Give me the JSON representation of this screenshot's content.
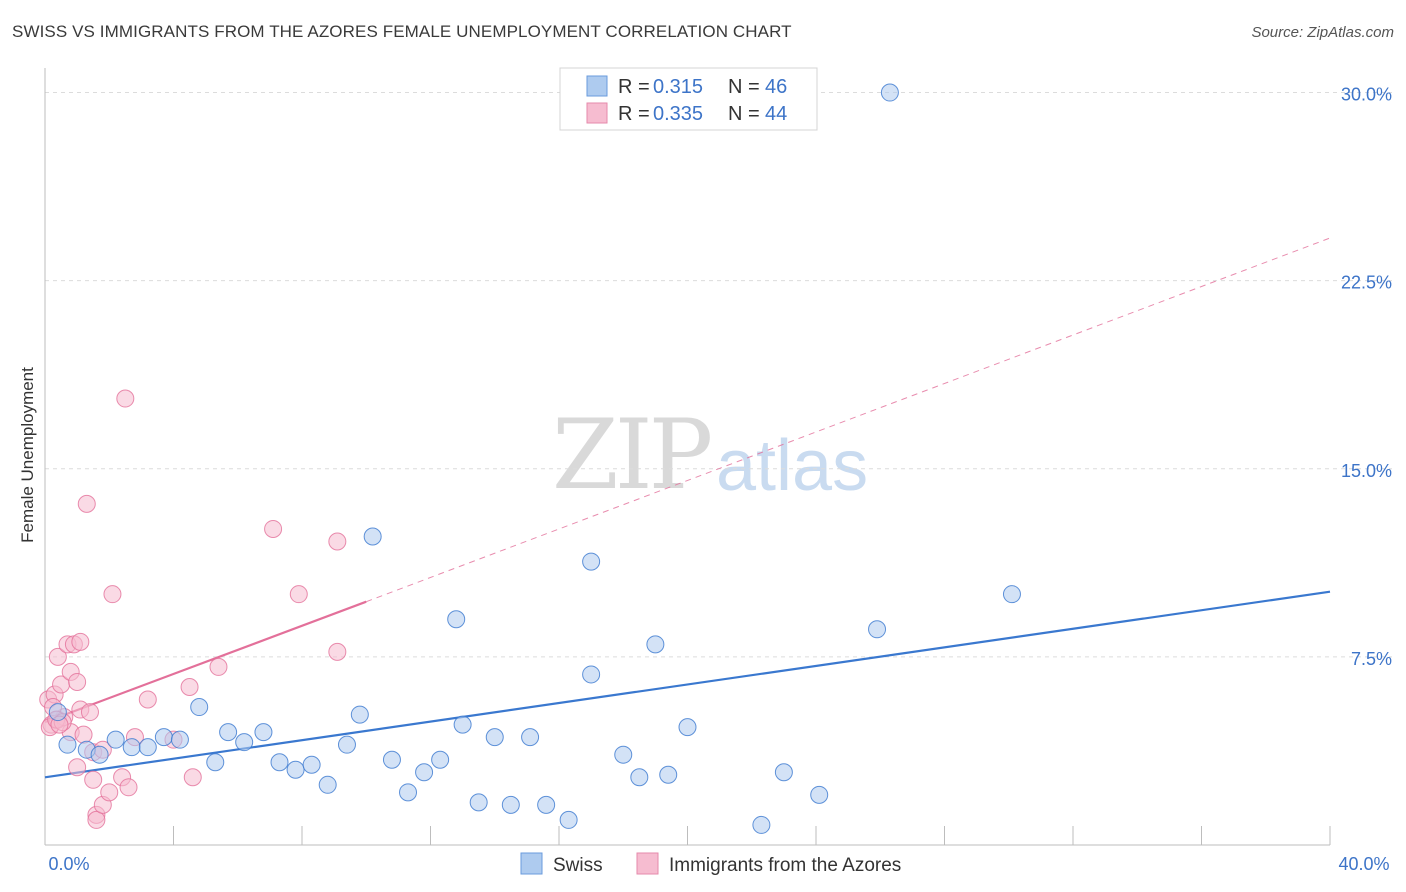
{
  "title": "SWISS VS IMMIGRANTS FROM THE AZORES FEMALE UNEMPLOYMENT CORRELATION CHART",
  "source": "Source: ZipAtlas.com",
  "watermark": {
    "zip": "ZIP",
    "atlas": "atlas"
  },
  "legend": {
    "rows": [
      {
        "r_label": "R =",
        "r_value": "0.315",
        "n_label": "N =",
        "n_value": "46"
      },
      {
        "r_label": "R =",
        "r_value": "0.335",
        "n_label": "N =",
        "n_value": "44"
      }
    ]
  },
  "chart_data": {
    "type": "scatter",
    "title": "SWISS VS IMMIGRANTS FROM THE AZORES FEMALE UNEMPLOYMENT CORRELATION CHART",
    "xlabel": "",
    "ylabel": "Female Unemployment",
    "xlim": [
      0,
      40
    ],
    "ylim": [
      0,
      30.5
    ],
    "x_tick_labels": {
      "left": "0.0%",
      "right": "40.0%"
    },
    "y_ticks": [
      {
        "value": 7.5,
        "label": "7.5%"
      },
      {
        "value": 15,
        "label": "15.0%"
      },
      {
        "value": 22.5,
        "label": "22.5%"
      },
      {
        "value": 30,
        "label": "30.0%"
      }
    ],
    "colors": {
      "swiss": "#3a78cf",
      "swiss_fill": "#aecbef",
      "azores": "#e3709a",
      "azores_fill": "#f6bcd0"
    },
    "series": [
      {
        "name": "Swiss",
        "trend": {
          "x0": 0,
          "y0": 2.7,
          "x1": 40,
          "y1": 10.1,
          "dashed_from": null
        },
        "points": [
          [
            0.4,
            5.3
          ],
          [
            0.7,
            4.0
          ],
          [
            1.3,
            3.8
          ],
          [
            1.7,
            3.6
          ],
          [
            2.2,
            4.2
          ],
          [
            2.7,
            3.9
          ],
          [
            3.2,
            3.9
          ],
          [
            3.7,
            4.3
          ],
          [
            4.2,
            4.2
          ],
          [
            4.8,
            5.5
          ],
          [
            5.3,
            3.3
          ],
          [
            5.7,
            4.5
          ],
          [
            6.2,
            4.1
          ],
          [
            6.8,
            4.5
          ],
          [
            7.3,
            3.3
          ],
          [
            7.8,
            3.0
          ],
          [
            8.3,
            3.2
          ],
          [
            8.8,
            2.4
          ],
          [
            9.4,
            4.0
          ],
          [
            9.8,
            5.2
          ],
          [
            10.2,
            12.3
          ],
          [
            10.8,
            3.4
          ],
          [
            11.3,
            2.1
          ],
          [
            11.8,
            2.9
          ],
          [
            12.3,
            3.4
          ],
          [
            12.8,
            9.0
          ],
          [
            13.0,
            4.8
          ],
          [
            13.5,
            1.7
          ],
          [
            14.0,
            4.3
          ],
          [
            14.5,
            1.6
          ],
          [
            15.1,
            4.3
          ],
          [
            15.6,
            1.6
          ],
          [
            16.3,
            1.0
          ],
          [
            17.0,
            11.3
          ],
          [
            17.0,
            6.8
          ],
          [
            18.0,
            3.6
          ],
          [
            18.5,
            2.7
          ],
          [
            19.0,
            8.0
          ],
          [
            19.4,
            2.8
          ],
          [
            20.0,
            4.7
          ],
          [
            22.3,
            0.8
          ],
          [
            23.0,
            2.9
          ],
          [
            24.1,
            2.0
          ],
          [
            25.9,
            8.6
          ],
          [
            30.1,
            10.0
          ],
          [
            26.3,
            30.0
          ]
        ]
      },
      {
        "name": "Immigrants from the Azores",
        "trend": {
          "x0": 0,
          "y0": 4.9,
          "x1": 10,
          "y1": 9.7,
          "dashed_to_x": 40,
          "dashed_to_y": 24.2
        },
        "points": [
          [
            0.1,
            5.8
          ],
          [
            0.2,
            4.8
          ],
          [
            0.3,
            6.0
          ],
          [
            0.4,
            5.0
          ],
          [
            0.4,
            7.5
          ],
          [
            0.5,
            6.4
          ],
          [
            0.6,
            5.1
          ],
          [
            0.7,
            8.0
          ],
          [
            0.8,
            6.9
          ],
          [
            0.8,
            4.5
          ],
          [
            0.9,
            8.0
          ],
          [
            1.0,
            3.1
          ],
          [
            1.0,
            6.5
          ],
          [
            1.1,
            5.4
          ],
          [
            1.1,
            8.1
          ],
          [
            1.2,
            4.4
          ],
          [
            1.3,
            13.6
          ],
          [
            1.4,
            5.3
          ],
          [
            1.5,
            3.7
          ],
          [
            1.5,
            2.6
          ],
          [
            1.6,
            1.2
          ],
          [
            1.6,
            1.0
          ],
          [
            1.8,
            3.8
          ],
          [
            1.8,
            1.6
          ],
          [
            2.0,
            2.1
          ],
          [
            2.1,
            10.0
          ],
          [
            2.4,
            2.7
          ],
          [
            2.5,
            17.8
          ],
          [
            2.6,
            2.3
          ],
          [
            2.8,
            4.3
          ],
          [
            3.2,
            5.8
          ],
          [
            4.0,
            4.2
          ],
          [
            4.5,
            6.3
          ],
          [
            4.6,
            2.7
          ],
          [
            5.4,
            7.1
          ],
          [
            7.1,
            12.6
          ],
          [
            7.9,
            10.0
          ],
          [
            9.1,
            7.7
          ],
          [
            9.1,
            12.1
          ],
          [
            0.15,
            4.7
          ],
          [
            0.25,
            5.5
          ],
          [
            0.35,
            5.0
          ],
          [
            0.55,
            4.9
          ],
          [
            0.45,
            4.8
          ]
        ]
      }
    ]
  },
  "bottom_legend": [
    {
      "label": "Swiss"
    },
    {
      "label": "Immigrants from the Azores"
    }
  ]
}
